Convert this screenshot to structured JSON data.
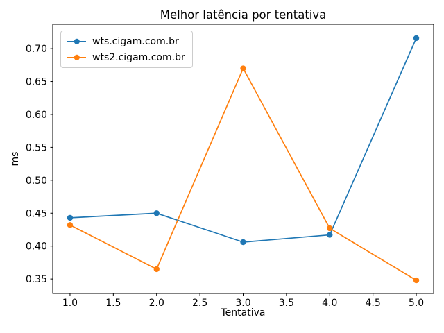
{
  "chart_data": {
    "type": "line",
    "title": "Melhor latência por tentativa",
    "xlabel": "Tentativa",
    "ylabel": "ms",
    "x": [
      1,
      2,
      3,
      4,
      5
    ],
    "series": [
      {
        "name": "wts.cigam.com.br",
        "color": "#1f77b4",
        "values": [
          0.443,
          0.45,
          0.406,
          0.417,
          0.716
        ]
      },
      {
        "name": "wts2.cigam.com.br",
        "color": "#ff7f0e",
        "values": [
          0.432,
          0.365,
          0.67,
          0.427,
          0.348
        ]
      }
    ],
    "xticks": [
      1.0,
      1.5,
      2.0,
      2.5,
      3.0,
      3.5,
      4.0,
      4.5,
      5.0
    ],
    "yticks": [
      0.35,
      0.4,
      0.45,
      0.5,
      0.55,
      0.6,
      0.65,
      0.7
    ],
    "xlim": [
      0.8,
      5.2
    ],
    "ylim": [
      0.328,
      0.737
    ],
    "grid": false,
    "legend_position": "upper left",
    "marker": "o",
    "background_color": "#ffffff",
    "spine_color": "#000000"
  }
}
